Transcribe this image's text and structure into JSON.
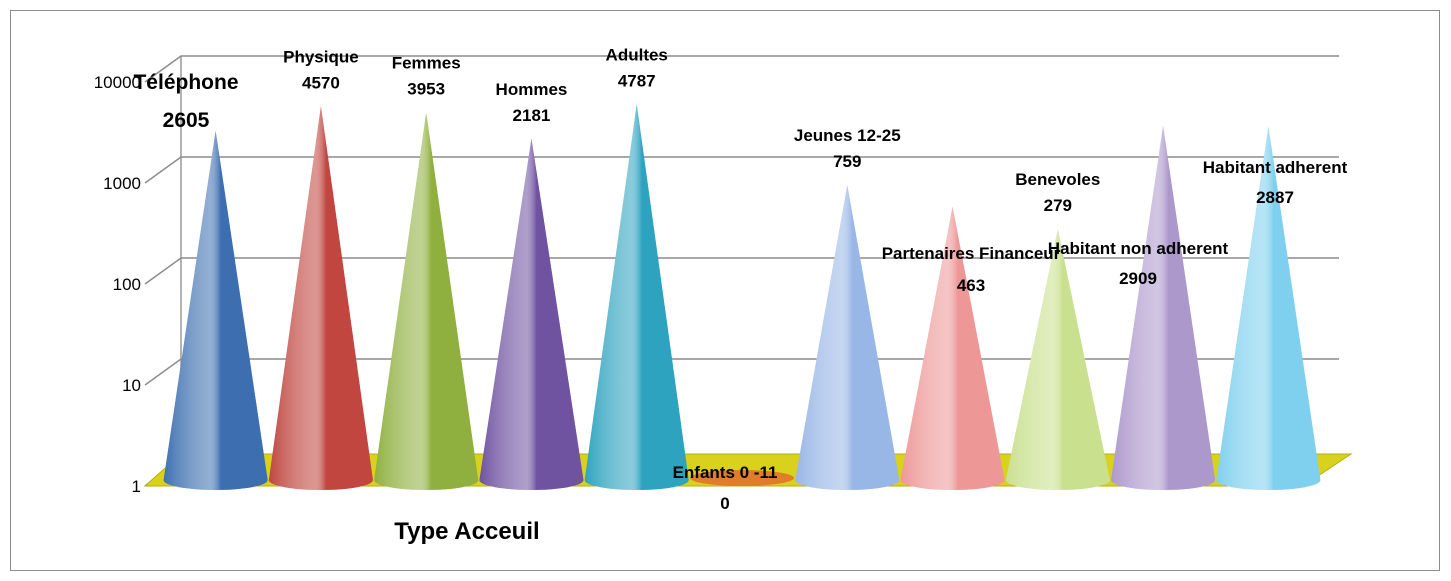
{
  "chart_data": {
    "type": "bar",
    "shape": "cone",
    "categories": [
      "Téléphone",
      "Physique",
      "Femmes",
      "Hommes",
      "Adultes",
      "Enfants  0  -11",
      "Jeunes 12-25",
      "Partenaires Financeur",
      "Benevoles",
      "Habitant non adherent",
      "Habitant adherent"
    ],
    "values": [
      2605,
      4570,
      3953,
      2181,
      4787,
      0,
      759,
      463,
      279,
      2909,
      2887
    ],
    "value_labels": [
      "2605",
      "4570",
      "3953",
      "2181",
      "4787",
      "0",
      "759",
      "463",
      "279",
      "2909",
      "2887"
    ],
    "xlabel": "Type Acceuil",
    "yscale": "log",
    "ylim": [
      1,
      10000
    ],
    "yticks": [
      "1",
      "10",
      "100",
      "1000",
      "10000"
    ],
    "grid": true,
    "legend": "none",
    "colors": [
      "#3d6fb0",
      "#c0463f",
      "#8fb03f",
      "#6f52a0",
      "#2ea3bf",
      "#e07c2a",
      "#98b6e6",
      "#ee9797",
      "#c9e08e",
      "#ad98cc",
      "#7fd0ee"
    ],
    "floor_color": "#d9d21c"
  }
}
